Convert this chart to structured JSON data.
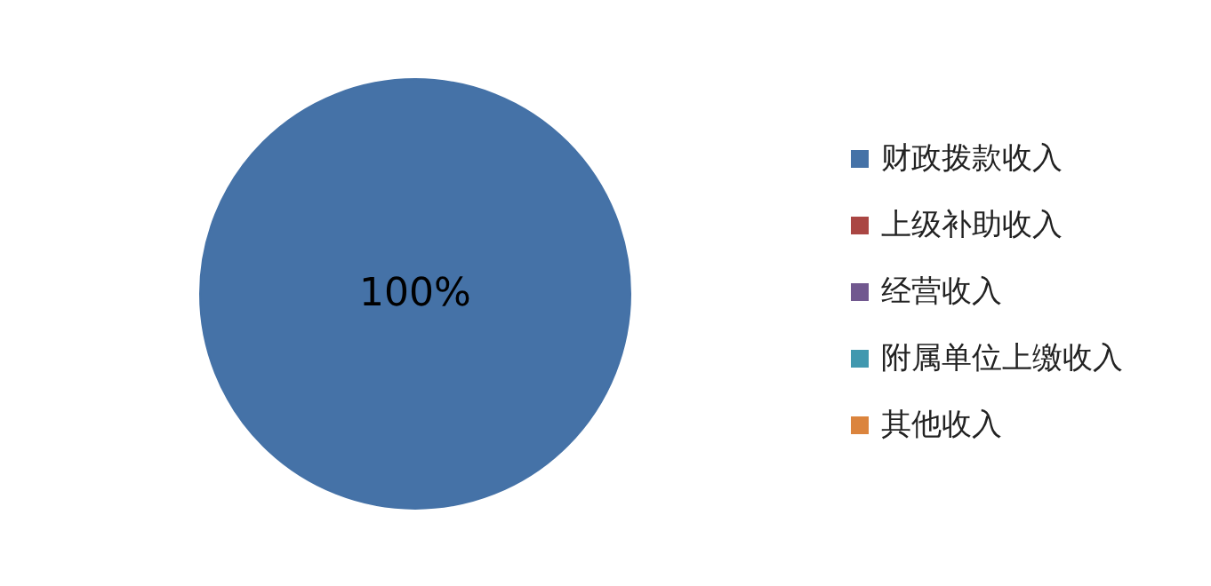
{
  "chart_data": {
    "type": "pie",
    "categories": [
      "财政拨款收入",
      "上级补助收入",
      "经营收入",
      "附属单位上缴收入",
      "其他收入"
    ],
    "values": [
      100,
      0,
      0,
      0,
      0
    ],
    "colors": [
      "#4572a7",
      "#aa4643",
      "#71588f",
      "#4198af",
      "#db843d"
    ],
    "value_labels": [
      "100%",
      null,
      null,
      null,
      null
    ],
    "legend": "right"
  }
}
